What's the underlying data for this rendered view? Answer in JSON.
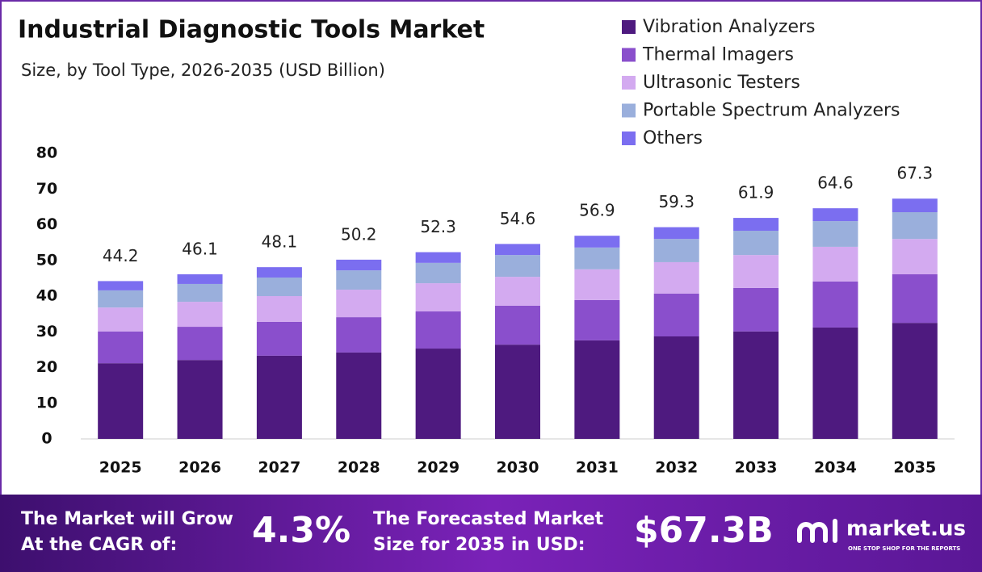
{
  "chart_data": {
    "type": "stacked-bar",
    "title": "Industrial Diagnostic Tools Market",
    "subtitle": "Size, by Tool Type, 2026-2035 (USD Billion)",
    "categories": [
      "2025",
      "2026",
      "2027",
      "2028",
      "2029",
      "2030",
      "2031",
      "2032",
      "2033",
      "2034",
      "2035"
    ],
    "series": [
      {
        "name": "Vibration Analyzers",
        "color": "#4e1a7f",
        "values": [
          21.2,
          22.1,
          23.3,
          24.2,
          25.3,
          26.4,
          27.6,
          28.7,
          30.1,
          31.2,
          32.5
        ]
      },
      {
        "name": "Thermal Imagers",
        "color": "#8a4fcc",
        "values": [
          8.9,
          9.3,
          9.5,
          9.9,
          10.4,
          10.9,
          11.3,
          12.0,
          12.2,
          12.9,
          13.6
        ]
      },
      {
        "name": "Ultrasonic Testers",
        "color": "#d3aaf0",
        "values": [
          6.7,
          7.0,
          7.2,
          7.7,
          7.9,
          8.1,
          8.6,
          8.8,
          9.2,
          9.7,
          9.9
        ]
      },
      {
        "name": "Portable Spectrum Analyzers",
        "color": "#9aafdc",
        "values": [
          4.8,
          5.0,
          5.2,
          5.4,
          5.7,
          6.1,
          6.1,
          6.5,
          6.8,
          7.2,
          7.5
        ]
      },
      {
        "name": "Others",
        "color": "#7b6ef0",
        "values": [
          2.6,
          2.7,
          2.9,
          3.0,
          3.0,
          3.1,
          3.3,
          3.3,
          3.6,
          3.6,
          3.8
        ]
      }
    ],
    "totals": [
      44.2,
      46.1,
      48.1,
      50.2,
      52.3,
      54.6,
      56.9,
      59.3,
      61.9,
      64.6,
      67.3
    ],
    "ylim": [
      0,
      80
    ],
    "yticks": [
      0,
      10,
      20,
      30,
      40,
      50,
      60,
      70,
      80
    ],
    "grid": false
  },
  "footer": {
    "cagr_label": [
      "The Market will Grow",
      "At the CAGR of:"
    ],
    "cagr_value": "4.3%",
    "forecast_label": [
      "The Forecasted Market",
      "Size for 2035 in USD:"
    ],
    "forecast_value": "$67.3B",
    "brand": "market.us",
    "tagline": "ONE STOP SHOP FOR THE REPORTS"
  }
}
